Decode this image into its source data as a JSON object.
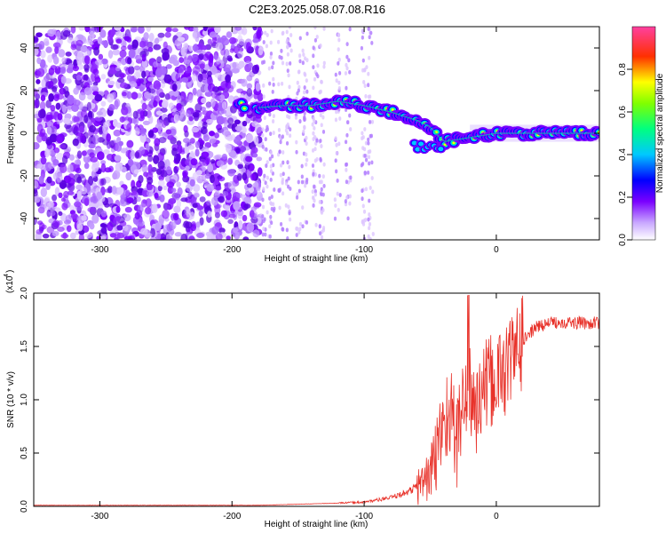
{
  "title": "C2E3.2025.058.07.08.R16",
  "chart_data": [
    {
      "type": "heatmap",
      "xlabel": "Height of straight line (km)",
      "ylabel": "Frequency (Hz)",
      "xlim": [
        -350,
        78
      ],
      "ylim": [
        -50,
        50
      ],
      "xticks": [
        -300,
        -200,
        -100,
        0
      ],
      "xtick_labels": [
        "-300",
        "-200",
        "-100",
        "0"
      ],
      "yticks": [
        -40,
        -20,
        0,
        20,
        40
      ],
      "ytick_labels": [
        "-40",
        "-20",
        "0",
        "20",
        "40"
      ],
      "colorbar": {
        "label": "Normalized spectral amplitude",
        "range": [
          0,
          1
        ],
        "ticks": [
          0,
          0.2,
          0.4,
          0.6,
          0.8
        ],
        "tick_labels": [
          "0.0",
          "0.2",
          "0.4",
          "0.6",
          "0.8"
        ],
        "colors": [
          "#ffffff",
          "#7a00ff",
          "#0000ff",
          "#00ffff",
          "#00ff00",
          "#ffff00",
          "#ff0000",
          "#ff00ff"
        ]
      },
      "ridge": {
        "x": [
          -200,
          -180,
          -160,
          -140,
          -120,
          -100,
          -80,
          -60,
          -50,
          -40,
          -30,
          -20,
          -10,
          0,
          20,
          40,
          60,
          78
        ],
        "y": [
          14,
          12,
          13,
          13,
          15,
          13,
          10,
          6,
          3,
          -4,
          -3,
          -2,
          -1,
          0,
          0,
          0,
          0,
          0
        ]
      },
      "grid": false
    },
    {
      "type": "line",
      "xlabel": "Height of straight line (km)",
      "ylabel": "SNR (10 * v/v)",
      "y_multiplier_label": "(x10",
      "y_multiplier_exp": "4",
      "y_multiplier_close": ")",
      "xlim": [
        -350,
        78
      ],
      "ylim": [
        0,
        2.0
      ],
      "xticks": [
        -300,
        -200,
        -100,
        0
      ],
      "xtick_labels": [
        "-300",
        "-200",
        "-100",
        "0"
      ],
      "yticks": [
        0,
        0.5,
        1.0,
        1.5,
        2.0
      ],
      "ytick_labels": [
        "0.0",
        "0.5",
        "1.0",
        "1.5",
        "2.0"
      ],
      "line_color": "#e8322a",
      "series": [
        {
          "x": [
            -350,
            -250,
            -200,
            -180,
            -150,
            -120,
            -100,
            -90,
            -80,
            -70,
            -60,
            -50,
            -45,
            -40,
            -35,
            -30,
            -25,
            -20,
            -15,
            -10,
            -5,
            0,
            5,
            10,
            15,
            20,
            25,
            30,
            40,
            50,
            60,
            78
          ],
          "values": [
            0.01,
            0.01,
            0.01,
            0.01,
            0.02,
            0.03,
            0.04,
            0.06,
            0.08,
            0.12,
            0.18,
            0.3,
            0.5,
            0.8,
            0.9,
            0.6,
            1.0,
            1.05,
            0.9,
            1.1,
            1.15,
            1.2,
            1.25,
            1.35,
            1.45,
            1.55,
            1.62,
            1.68,
            1.72,
            1.73,
            1.72,
            1.72
          ]
        }
      ],
      "grid": false
    }
  ]
}
